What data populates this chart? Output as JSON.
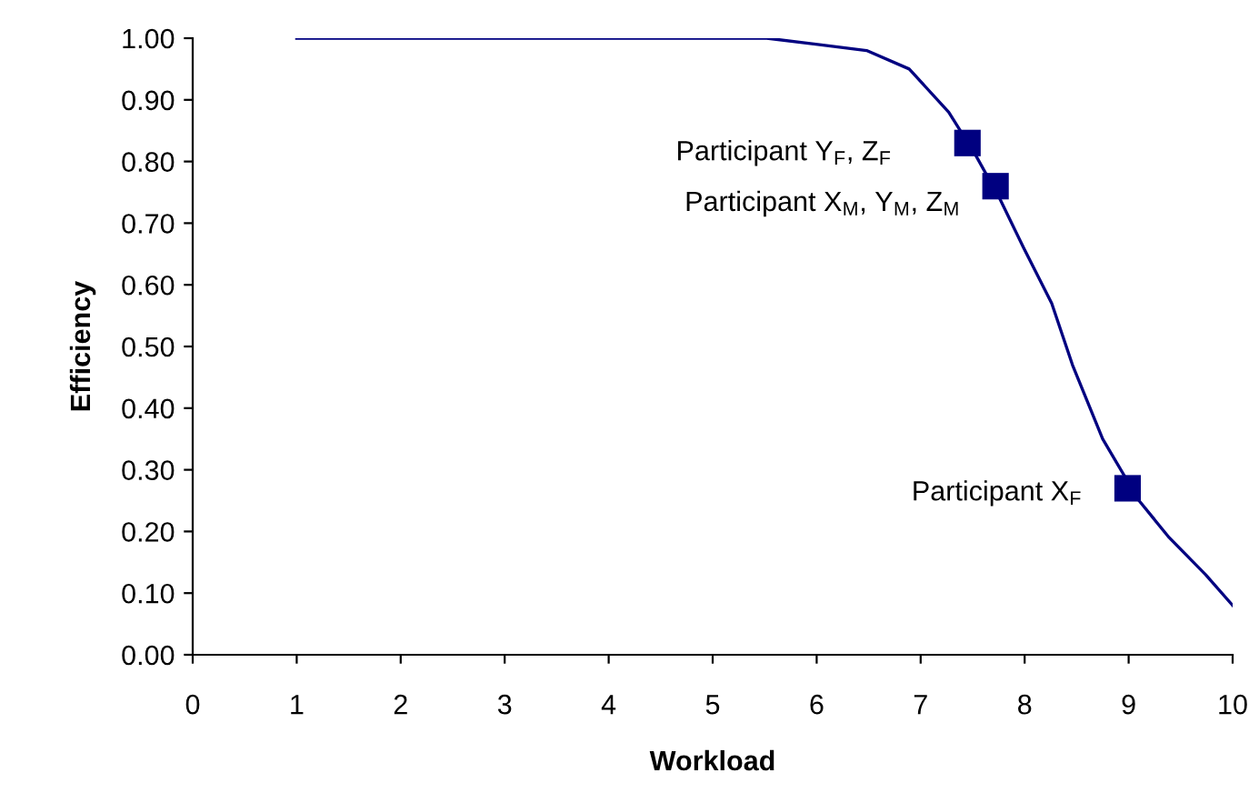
{
  "chart_data": {
    "type": "line",
    "xlabel": "Workload",
    "ylabel": "Efficiency",
    "xlim": [
      0,
      10
    ],
    "xticks": [
      0,
      1,
      2,
      3,
      4,
      5,
      6,
      7,
      8,
      9,
      10
    ],
    "ylim": [
      0,
      1
    ],
    "yticks": [
      {
        "value": 0,
        "label": "0.00"
      },
      {
        "value": 0.1,
        "label": "0.10"
      },
      {
        "value": 0.2,
        "label": "0.20"
      },
      {
        "value": 0.3,
        "label": "0.30"
      },
      {
        "value": 0.4,
        "label": "0.40"
      },
      {
        "value": 0.5,
        "label": "0.50"
      },
      {
        "value": 0.6,
        "label": "0.60"
      },
      {
        "value": 0.7,
        "label": "0.70"
      },
      {
        "value": 0.8,
        "label": "0.80"
      },
      {
        "value": 0.9,
        "label": "0.90"
      },
      {
        "value": 1,
        "label": "1.00"
      }
    ],
    "grid": false,
    "legend": false,
    "series": [
      {
        "color": "#000080",
        "marker": "none",
        "x": [
          1,
          4.79,
          5.52,
          6.01,
          6.48,
          6.89,
          7.27,
          7.53,
          7.76,
          7.99,
          8.26,
          8.46,
          8.75,
          9.1,
          9.39,
          9.74,
          10
        ],
        "values": [
          1,
          1,
          1,
          0.99,
          0.98,
          0.95,
          0.88,
          0.81,
          0.74,
          0.66,
          0.57,
          0.47,
          0.35,
          0.25,
          0.19,
          0.13,
          0.08
        ]
      },
      {
        "type": "scatter",
        "color": "#000080",
        "marker": "square",
        "x": [
          7.45,
          7.72,
          8.99
        ],
        "values": [
          0.83,
          0.76,
          0.27
        ]
      }
    ],
    "annotations": [
      {
        "text": "Participant Y$_{F}$, Z$_{F}$",
        "x": 7.45,
        "y": 0.83
      },
      {
        "text": "Participant X$_{M}$, Y$_{M}$, Z$_{M}$",
        "x": 7.72,
        "y": 0.76
      },
      {
        "text": "Participant X$_{F}$",
        "x": 8.99,
        "y": 0.27
      }
    ]
  }
}
